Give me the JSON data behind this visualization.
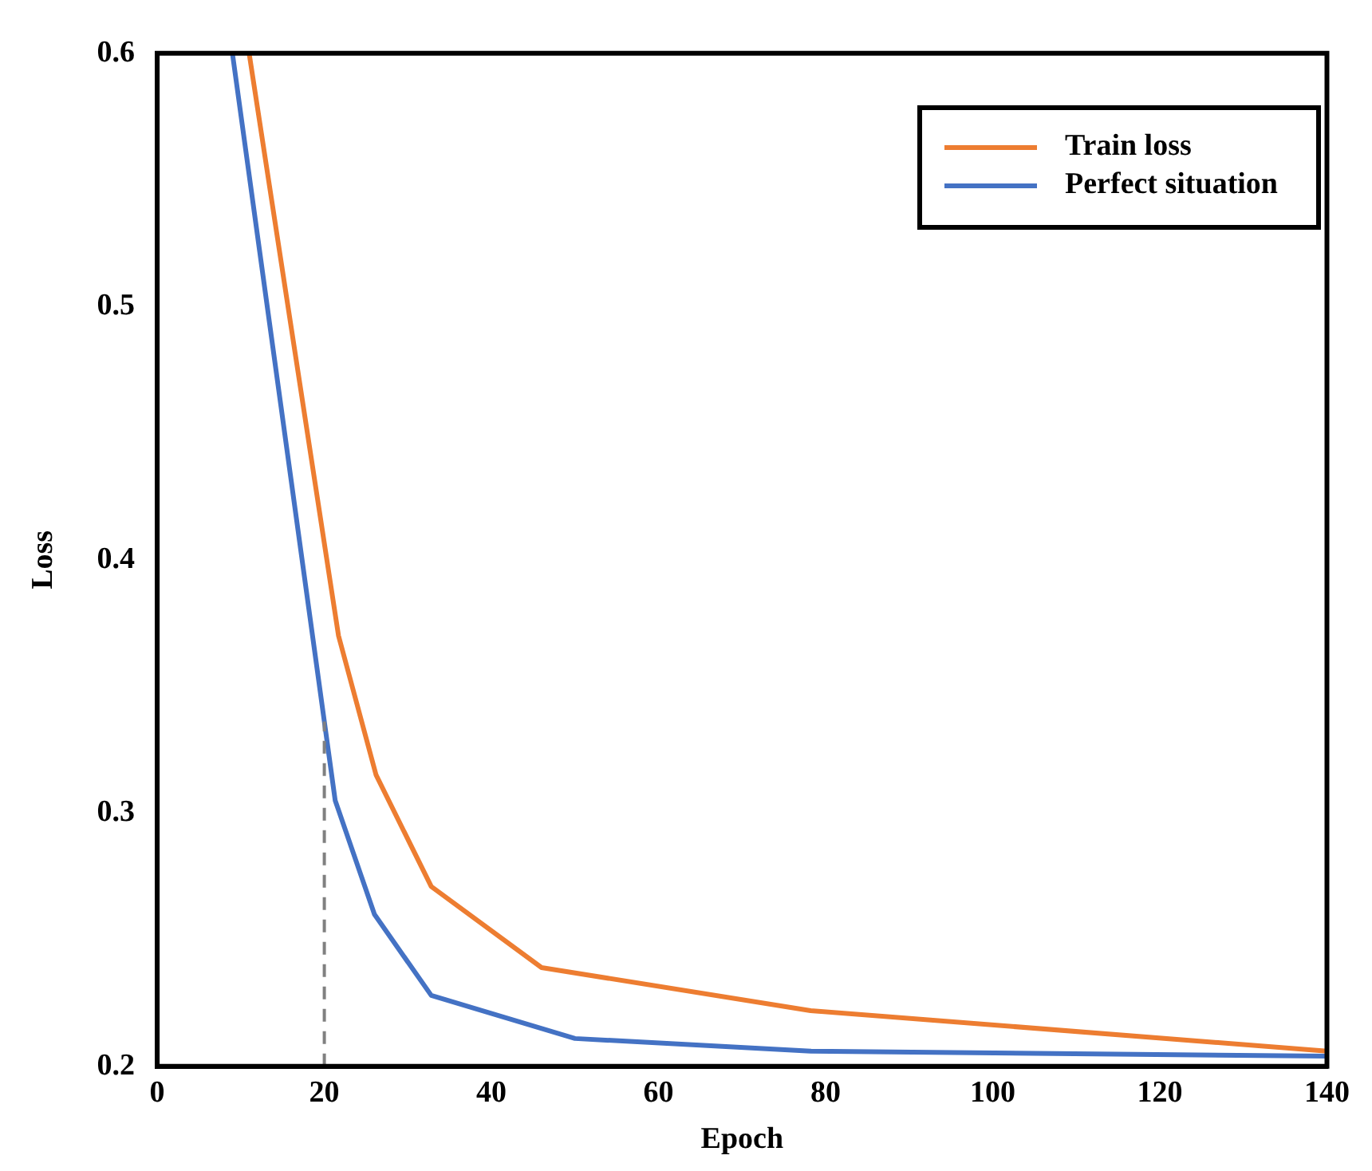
{
  "chart_data": {
    "type": "line",
    "xlabel": "Epoch",
    "ylabel": "Loss",
    "xlim": [
      0,
      140
    ],
    "ylim": [
      0.2,
      0.6
    ],
    "xticks": [
      0,
      20,
      40,
      60,
      80,
      100,
      120,
      140
    ],
    "yticks": [
      0.2,
      0.3,
      0.4,
      0.5,
      0.6
    ],
    "grid": false,
    "legend": "top right",
    "marker": "none",
    "line_style": "solid",
    "series": [
      {
        "name": "Train loss",
        "color": "#ed7d31",
        "x": [
          11,
          21.7,
          26.2,
          32.8,
          46,
          78.2,
          140
        ],
        "values": [
          0.6,
          0.37,
          0.315,
          0.271,
          0.239,
          0.222,
          0.206
        ]
      },
      {
        "name": "Perfect situation",
        "color": "#4472c4",
        "x": [
          9,
          21.3,
          26,
          32.8,
          50,
          78.2,
          140
        ],
        "values": [
          0.6,
          0.305,
          0.26,
          0.228,
          0.211,
          0.206,
          0.204
        ]
      }
    ],
    "ref_lines": [
      {
        "axis": "x",
        "value": 20,
        "color": "#808080",
        "line_style": "dashed"
      }
    ]
  }
}
